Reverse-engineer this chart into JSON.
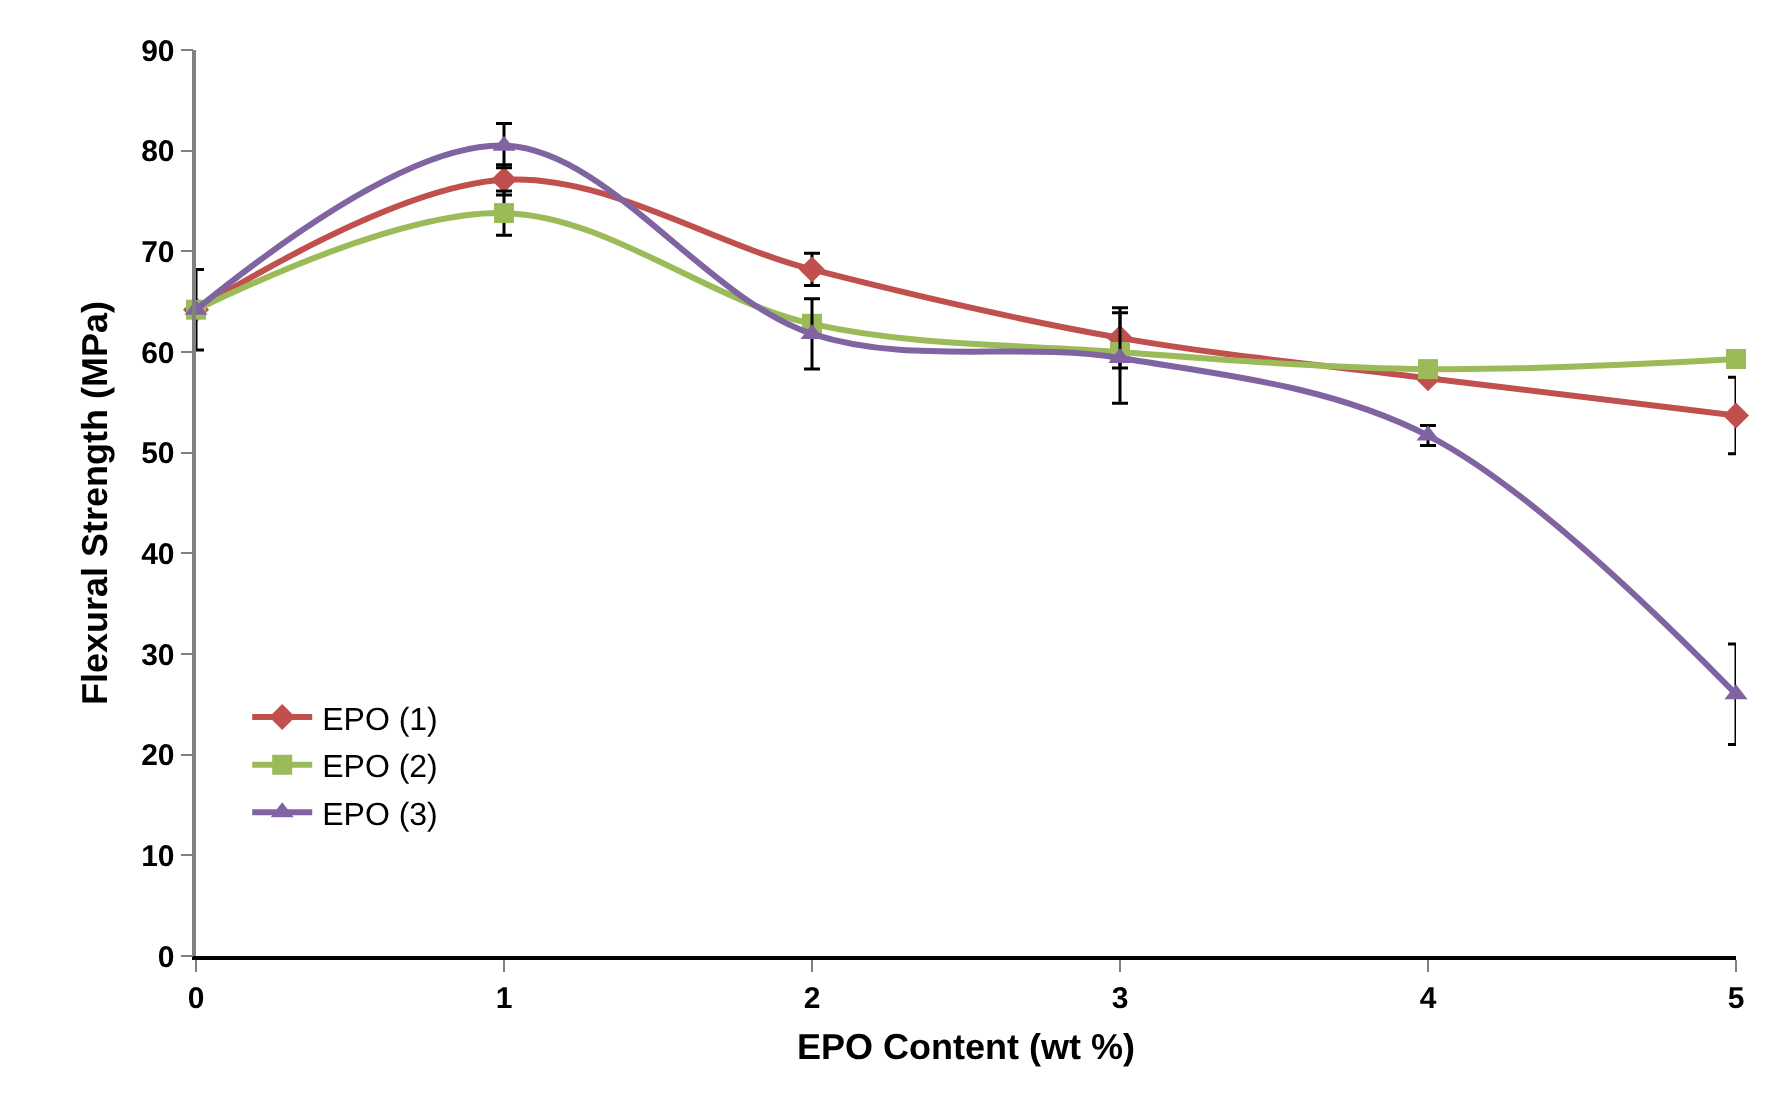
{
  "chart_data": {
    "type": "line",
    "xlabel": "EPO Content (wt %)",
    "ylabel": "Flexural Strength (MPa)",
    "x": [
      0,
      1,
      2,
      3,
      4,
      5
    ],
    "series": [
      {
        "name": "EPO (1)",
        "color": "#c0504d",
        "marker": "diamond",
        "values": [
          64.2,
          77.1,
          68.2,
          61.4,
          57.4,
          53.7
        ],
        "errors": [
          null,
          1.5,
          1.6,
          3,
          null,
          3.8
        ]
      },
      {
        "name": "EPO (2)",
        "color": "#9bbb59",
        "marker": "square",
        "values": [
          64.2,
          73.8,
          62.8,
          60,
          58.3,
          59.3
        ],
        "errors": [
          4,
          2.2,
          null,
          null,
          null,
          null
        ]
      },
      {
        "name": "EPO (3)",
        "color": "#8064a2",
        "marker": "triangle",
        "values": [
          64.2,
          80.5,
          61.8,
          59.4,
          51.7,
          26
        ],
        "errors": [
          null,
          2.2,
          3.5,
          4.5,
          1,
          5
        ]
      }
    ],
    "xlim": [
      0,
      5
    ],
    "xticks": [
      0,
      1,
      2,
      3,
      4,
      5
    ],
    "ylim": [
      0,
      90
    ],
    "yticks": [
      0,
      10,
      20,
      30,
      40,
      50,
      60,
      70,
      80,
      90
    ],
    "grid": false,
    "legend": "bottom left",
    "line_style": "solid"
  }
}
